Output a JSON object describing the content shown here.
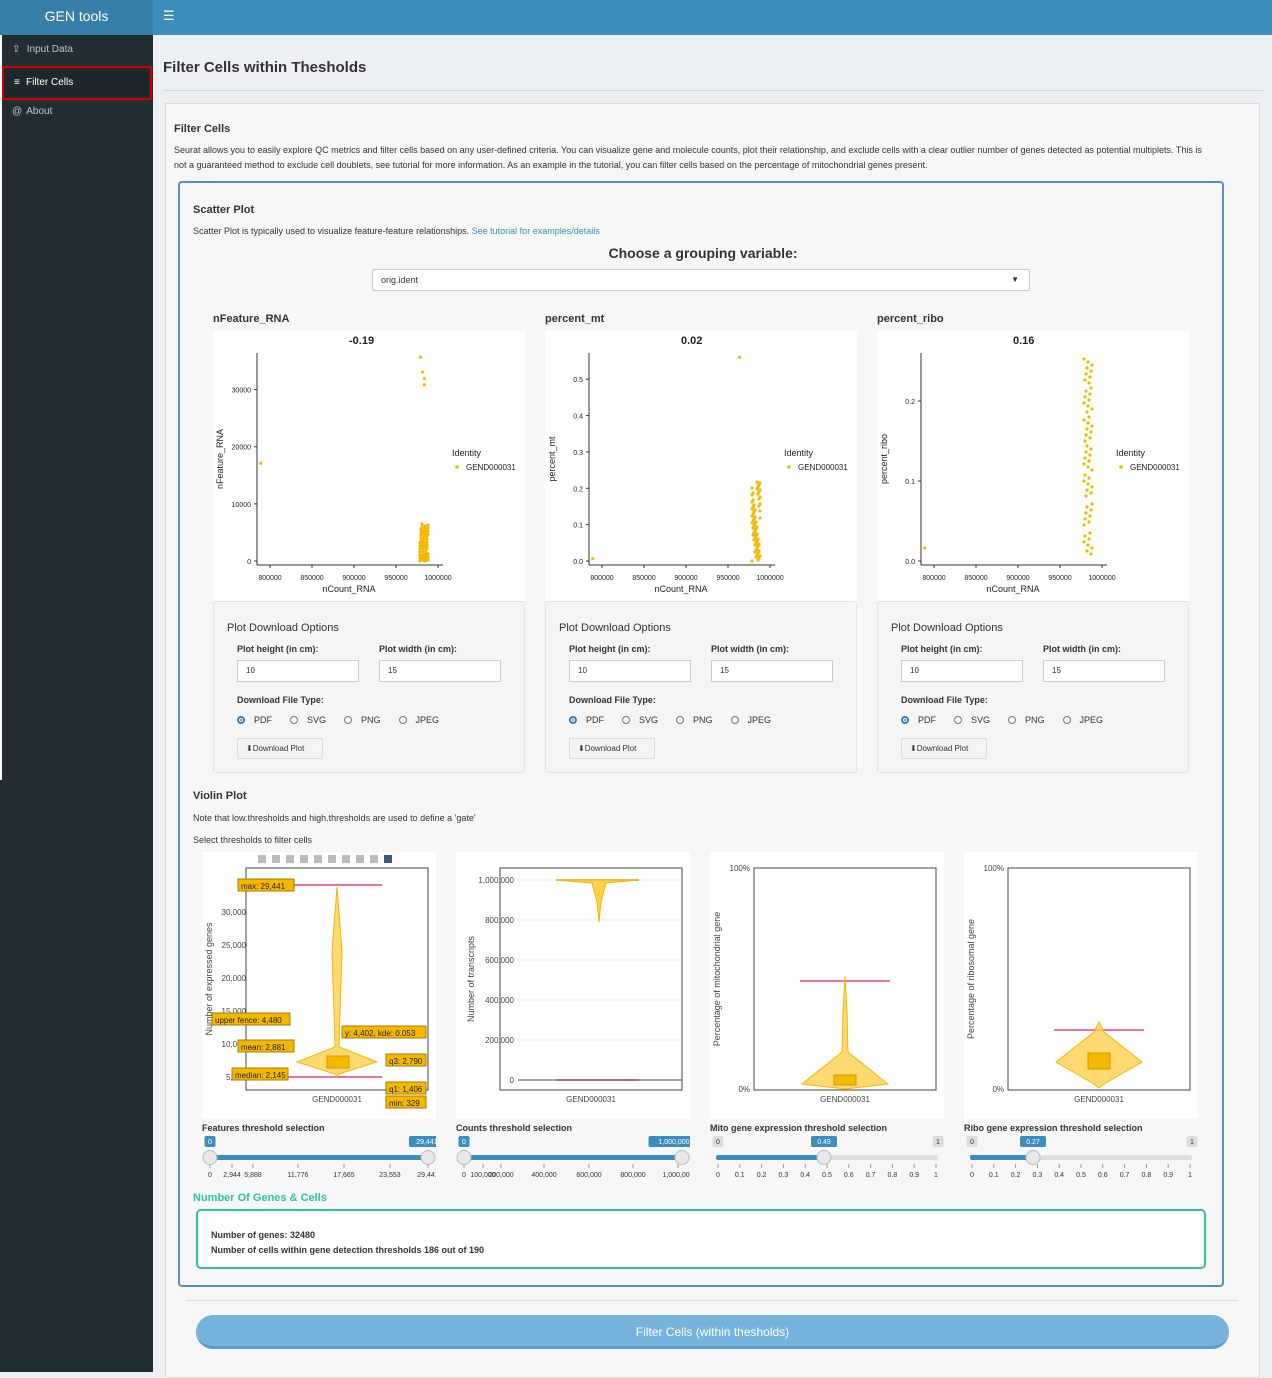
{
  "header": {
    "app_title": "GEN tools",
    "menu_icon": "bars-icon"
  },
  "sidebar": {
    "items": [
      {
        "label": "Input Data",
        "icon": "upload-icon"
      },
      {
        "label": "Filter Cells",
        "icon": "layers-icon",
        "active": true
      },
      {
        "label": "About",
        "icon": "at-icon"
      }
    ]
  },
  "page": {
    "title": "Filter Cells within Thesholds",
    "section_title": "Filter Cells",
    "description": "Seurat allows you to easily explore QC metrics and filter cells based on any user-defined criteria. You can visualize gene and molecule counts, plot their relationship, and exclude cells with a clear outlier number of genes detected as potential multiplets. This is not a guaranteed method to exclude cell doublets, see tutorial for more information. As an example in the tutorial, you can filter cells based on the percentage of mitochondrial genes present."
  },
  "scatter": {
    "title": "Scatter Plot",
    "description": "Scatter Plot is typically used to visualize feature-feature relationships.",
    "link": "See tutorial for examples/details",
    "choose_label": "Choose a grouping variable:",
    "grouping_value": "orig.ident",
    "legend_title": "Identity",
    "legend_item": "GEND000031",
    "xlabel": "nCount_RNA",
    "xticks": [
      "800000",
      "850000",
      "900000",
      "950000",
      "1000000"
    ],
    "plots": [
      {
        "title": "nFeature_RNA",
        "corr": "-0.19",
        "ylabel": "nFeature_RNA",
        "yticks": [
          "0",
          "10000",
          "20000",
          "30000"
        ]
      },
      {
        "title": "percent_mt",
        "corr": "0.02",
        "ylabel": "percent_mt",
        "yticks": [
          "0.0",
          "0.1",
          "0.2",
          "0.3",
          "0.4",
          "0.5"
        ]
      },
      {
        "title": "percent_ribo",
        "corr": "0.16",
        "ylabel": "percent_ribo",
        "yticks": [
          "0.0",
          "0.1",
          "0.2"
        ]
      }
    ],
    "download": {
      "title": "Plot Download Options",
      "height_label": "Plot height (in cm):",
      "height_value": "10",
      "width_label": "Plot width (in cm):",
      "width_value": "15",
      "filetype_label": "Download File Type:",
      "filetypes": [
        "PDF",
        "SVG",
        "PNG",
        "JPEG"
      ],
      "selected": "PDF",
      "button_label": "Download Plot"
    }
  },
  "violin": {
    "title": "Violin Plot",
    "note": "Note that low.thresholds and high.thresholds are used to define a 'gate'",
    "select_note": "Select thresholds to filter cells",
    "category": "GEND000031",
    "plots": [
      {
        "ylabel": "Number of expressed genes",
        "yticks": [
          "5,000",
          "10,000",
          "15,000",
          "20,000",
          "25,000",
          "30,000"
        ],
        "tooltips": [
          "max: 29,441",
          "upper fence: 4,480",
          "y: 4,402, kde: 0.053",
          "mean: 2,881",
          "q3: 2,790",
          "median: 2,145",
          "q1: 1,406",
          "min: 329"
        ]
      },
      {
        "ylabel": "Number of transcripts",
        "yticks": [
          "0",
          "200,000",
          "400,000",
          "600,000",
          "800,000",
          "1,000,000"
        ]
      },
      {
        "ylabel": "Percentage of mitochondrial gene",
        "yticks": [
          "0%",
          "100%"
        ]
      },
      {
        "ylabel": "Percentage of ribosomal gene",
        "yticks": [
          "0%",
          "100%"
        ]
      }
    ],
    "sliders": [
      {
        "label": "Features threshold selection",
        "low": "0",
        "high": "29,441",
        "ticks": [
          "0",
          "2,944",
          "5,888",
          "11,776",
          "17,665",
          "23,553",
          "29,441"
        ]
      },
      {
        "label": "Counts threshold selection",
        "low": "0",
        "high": "1,000,000",
        "ticks": [
          "0",
          "100,000",
          "200,000",
          "400,000",
          "600,000",
          "800,000",
          "1,000,000"
        ]
      },
      {
        "label": "Mito gene expression threshold selection",
        "low": "0",
        "value": "0.49",
        "high": "1",
        "ticks": [
          "0",
          "0.1",
          "0.2",
          "0.3",
          "0.4",
          "0.5",
          "0.6",
          "0.7",
          "0.8",
          "0.9",
          "1"
        ]
      },
      {
        "label": "Ribo gene expression threshold selection",
        "low": "0",
        "value": "0.27",
        "high": "1",
        "ticks": [
          "0",
          "0.1",
          "0.2",
          "0.3",
          "0.4",
          "0.5",
          "0.6",
          "0.7",
          "0.8",
          "0.9",
          "1"
        ]
      }
    ]
  },
  "summary": {
    "title": "Number Of Genes & Cells",
    "genes_line": "Number of genes: 32480",
    "cells_line": "Number of cells within gene detection thresholds 186 out of 190"
  },
  "filter_button": "Filter Cells (within thesholds)",
  "colors": {
    "header": "#3c8dbc",
    "sidebar": "#222d32",
    "accent_teal": "#2ec4a0",
    "points": "#f5b800",
    "threshold_line": "#e8457a"
  }
}
